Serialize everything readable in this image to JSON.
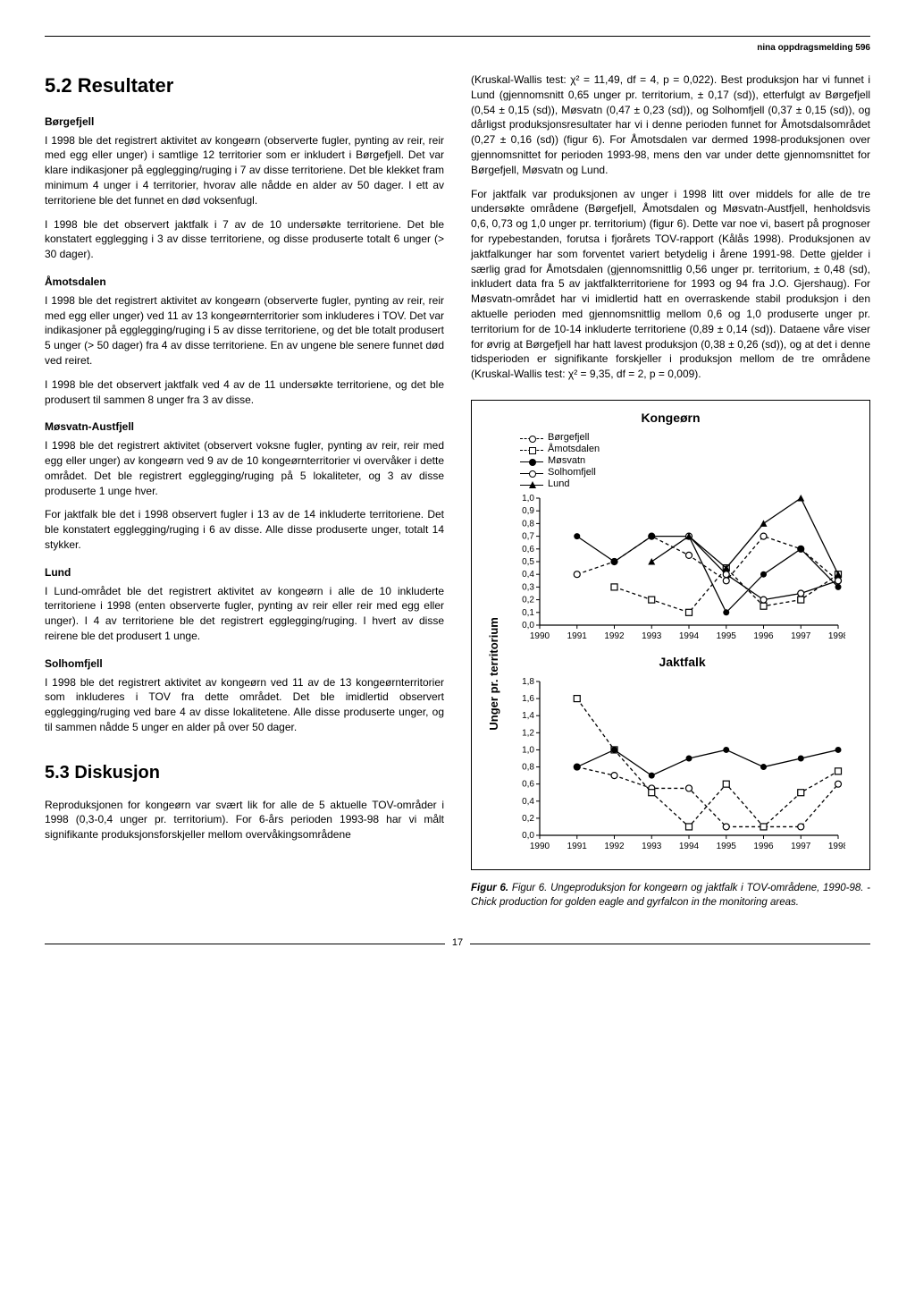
{
  "header": {
    "label": "nina oppdragsmelding 596"
  },
  "page_number": "17",
  "left_column": {
    "h1": "5.2 Resultater",
    "sub1": "Børgefjell",
    "p1": "I 1998 ble det registrert aktivitet av kongeørn (observerte fugler, pynting av reir, reir med egg eller unger) i samtlige 12 territorier som er inkludert i Børgefjell. Det var klare indikasjoner på egglegging/ruging i 7 av disse territoriene. Det ble klekket fram minimum 4 unger i 4 territorier, hvorav alle nådde en alder av 50 dager. I ett av territoriene ble det funnet en død voksenfugl.",
    "p2": "I 1998 ble det observert jaktfalk i 7 av de 10 undersøkte territoriene. Det ble konstatert egglegging i 3 av disse territoriene, og disse produserte totalt 6 unger (> 30 dager).",
    "sub2": "Åmotsdalen",
    "p3": "I 1998 ble det registrert aktivitet av kongeørn (observerte fugler, pynting av reir, reir med egg eller unger) ved 11 av 13 kongeørnterritorier som inkluderes i TOV. Det var indikasjoner på egglegging/ruging i 5 av disse territoriene, og det ble totalt produsert 5 unger (> 50 dager) fra 4 av disse territoriene. En av ungene ble senere funnet død ved reiret.",
    "p4": "I 1998 ble det observert jaktfalk ved 4 av de 11 undersøkte territoriene, og det ble produsert til sammen 8 unger fra 3 av disse.",
    "sub3": "Møsvatn-Austfjell",
    "p5": "I 1998 ble det registrert aktivitet (observert voksne fugler, pynting av reir, reir med egg eller unger) av kongeørn ved 9 av de 10 kongeørnterritorier vi overvåker i dette området. Det ble registrert egglegging/ruging på 5 lokaliteter, og 3 av disse produserte 1 unge hver.",
    "p6": "For jaktfalk ble det i 1998 observert fugler i 13 av de 14 inkluderte territoriene. Det ble konstatert egglegging/ruging i 6 av disse. Alle disse produserte unger, totalt 14 stykker.",
    "sub4": "Lund",
    "p7": "I Lund-området ble det registrert aktivitet av kongeørn i alle de 10 inkluderte territoriene i 1998 (enten observerte fugler, pynting av reir eller reir med egg eller unger). I 4 av territoriene ble det registrert egglegging/ruging. I hvert av disse reirene ble det produsert 1 unge.",
    "sub5": "Solhomfjell",
    "p8": "I 1998 ble det registrert aktivitet av kongeørn ved 11 av de 13 kongeørnterritorier som inkluderes i TOV fra dette området. Det ble imidlertid observert egglegging/ruging ved bare 4 av disse lokalitetene. Alle disse produserte unger, og til sammen nådde 5 unger en alder på over 50 dager.",
    "h2": "5.3 Diskusjon",
    "p9": "Reproduksjonen for kongeørn var svært lik for alle de 5 aktuelle TOV-områder i 1998 (0,3-0,4 unger pr. territorium). For 6-års perioden 1993-98 har vi målt signifikante produksjonsforskjeller mellom overvåkingsområdene"
  },
  "right_column": {
    "p1": "(Kruskal-Wallis test: χ² = 11,49, df = 4, p = 0,022). Best produksjon har vi funnet i Lund (gjennomsnitt 0,65 unger pr. territorium, ± 0,17 (sd)), etterfulgt av Børgefjell (0,54 ± 0,15 (sd)), Møsvatn (0,47 ± 0,23 (sd)), og Solhomfjell (0,37 ± 0,15 (sd)), og dårligst produksjonsresultater har vi i denne perioden funnet for Åmotsdalsområdet (0,27 ± 0,16 (sd)) (figur 6). For Åmotsdalen var dermed 1998-produksjonen over gjennomsnittet for perioden 1993-98, mens den var under dette gjennomsnittet for Børgefjell, Møsvatn og Lund.",
    "p2": "For jaktfalk var produksjonen av unger i 1998 litt over middels for alle de tre undersøkte områdene (Børgefjell, Åmotsdalen og Møsvatn-Austfjell, henholdsvis 0,6, 0,73 og 1,0 unger pr. territorium) (figur 6). Dette var noe vi, basert på prognoser for rypebestanden, forutsa i fjorårets TOV-rapport (Kålås 1998). Produksjonen av jaktfalkunger har som forventet variert betydelig i årene 1991-98. Dette gjelder i særlig grad for Åmotsdalen (gjennomsnittlig 0,56 unger pr. territorium, ± 0,48 (sd), inkludert data fra 5 av jaktfalkterritoriene for 1993 og 94 fra J.O. Gjershaug). For Møsvatn-området har vi imidlertid hatt en overraskende stabil produksjon i den aktuelle perioden med gjennomsnittlig mellom 0,6 og 1,0 produserte unger pr. territorium for de 10-14 inkluderte territoriene (0,89 ± 0,14 (sd)). Dataene våre viser for øvrig at Børgefjell har hatt lavest produksjon (0,38 ± 0,26 (sd)), og at det i denne tidsperioden er signifikante forskjeller i produksjon mellom de tre områdene (Kruskal-Wallis test: χ² = 9,35, df = 2, p = 0,009)."
  },
  "figure": {
    "ylabel": "Unger pr. territorium",
    "top": {
      "title": "Kongeørn",
      "years": [
        1990,
        1991,
        1992,
        1993,
        1994,
        1995,
        1996,
        1997,
        1998
      ],
      "ylim": [
        0,
        1.0
      ],
      "ytick_step": 0.1,
      "series": {
        "borgefjell": {
          "label": "Børgefjell",
          "style": "dash",
          "marker": "circ-o",
          "color": "#000",
          "data": [
            {
              "x": 1991,
              "y": 0.4
            },
            {
              "x": 1992,
              "y": 0.5
            },
            {
              "x": 1993,
              "y": 0.7
            },
            {
              "x": 1994,
              "y": 0.55
            },
            {
              "x": 1995,
              "y": 0.35
            },
            {
              "x": 1996,
              "y": 0.7
            },
            {
              "x": 1997,
              "y": 0.6
            },
            {
              "x": 1998,
              "y": 0.35
            }
          ]
        },
        "amotsdalen": {
          "label": "Åmotsdalen",
          "style": "dash",
          "marker": "sq-o",
          "color": "#000",
          "data": [
            {
              "x": 1992,
              "y": 0.3
            },
            {
              "x": 1993,
              "y": 0.2
            },
            {
              "x": 1994,
              "y": 0.1
            },
            {
              "x": 1995,
              "y": 0.45
            },
            {
              "x": 1996,
              "y": 0.15
            },
            {
              "x": 1997,
              "y": 0.2
            },
            {
              "x": 1998,
              "y": 0.4
            }
          ]
        },
        "mosvatn": {
          "label": "Møsvatn",
          "style": "solid",
          "marker": "circ-f",
          "color": "#000",
          "data": [
            {
              "x": 1991,
              "y": 0.7
            },
            {
              "x": 1992,
              "y": 0.5
            },
            {
              "x": 1993,
              "y": 0.7
            },
            {
              "x": 1994,
              "y": 0.7
            },
            {
              "x": 1995,
              "y": 0.1
            },
            {
              "x": 1996,
              "y": 0.4
            },
            {
              "x": 1997,
              "y": 0.6
            },
            {
              "x": 1998,
              "y": 0.3
            }
          ]
        },
        "solhomfjell": {
          "label": "Solhomfjell",
          "style": "solid",
          "marker": "circ-o",
          "color": "#000",
          "data": [
            {
              "x": 1994,
              "y": 0.7
            },
            {
              "x": 1995,
              "y": 0.4
            },
            {
              "x": 1996,
              "y": 0.2
            },
            {
              "x": 1997,
              "y": 0.25
            },
            {
              "x": 1998,
              "y": 0.35
            }
          ]
        },
        "lund": {
          "label": "Lund",
          "style": "solid",
          "marker": "tri-f",
          "color": "#000",
          "data": [
            {
              "x": 1993,
              "y": 0.5
            },
            {
              "x": 1994,
              "y": 0.7
            },
            {
              "x": 1995,
              "y": 0.45
            },
            {
              "x": 1996,
              "y": 0.8
            },
            {
              "x": 1997,
              "y": 1.0
            },
            {
              "x": 1998,
              "y": 0.4
            }
          ]
        }
      }
    },
    "bottom": {
      "title": "Jaktfalk",
      "years": [
        1990,
        1991,
        1992,
        1993,
        1994,
        1995,
        1996,
        1997,
        1998
      ],
      "ylim": [
        0,
        1.8
      ],
      "ytick_step": 0.2,
      "series": {
        "borgefjell": {
          "style": "dash",
          "marker": "circ-o",
          "data": [
            {
              "x": 1991,
              "y": 0.8
            },
            {
              "x": 1992,
              "y": 0.7
            },
            {
              "x": 1993,
              "y": 0.55
            },
            {
              "x": 1994,
              "y": 0.55
            },
            {
              "x": 1995,
              "y": 0.1
            },
            {
              "x": 1996,
              "y": 0.1
            },
            {
              "x": 1997,
              "y": 0.1
            },
            {
              "x": 1998,
              "y": 0.6
            }
          ]
        },
        "amotsdalen": {
          "style": "dash",
          "marker": "sq-o",
          "data": [
            {
              "x": 1991,
              "y": 1.6
            },
            {
              "x": 1992,
              "y": 1.0
            },
            {
              "x": 1993,
              "y": 0.5
            },
            {
              "x": 1994,
              "y": 0.1
            },
            {
              "x": 1995,
              "y": 0.6
            },
            {
              "x": 1996,
              "y": 0.1
            },
            {
              "x": 1997,
              "y": 0.5
            },
            {
              "x": 1998,
              "y": 0.75
            }
          ]
        },
        "mosvatn": {
          "style": "solid",
          "marker": "circ-f",
          "data": [
            {
              "x": 1991,
              "y": 0.8
            },
            {
              "x": 1992,
              "y": 1.0
            },
            {
              "x": 1993,
              "y": 0.7
            },
            {
              "x": 1994,
              "y": 0.9
            },
            {
              "x": 1995,
              "y": 1.0
            },
            {
              "x": 1996,
              "y": 0.8
            },
            {
              "x": 1997,
              "y": 0.9
            },
            {
              "x": 1998,
              "y": 1.0
            }
          ]
        }
      }
    },
    "caption_html": "Figur 6. Ungeproduksjon for kongeørn og jaktfalk i TOV-områdene, 1990-98. - Chick production for golden eagle and gyrfalcon in the monitoring areas."
  }
}
